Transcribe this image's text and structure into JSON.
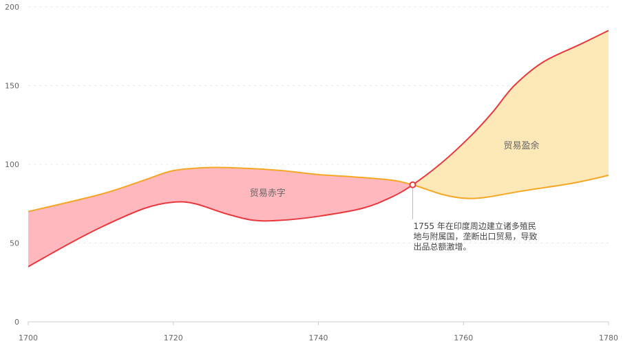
{
  "chart_data": {
    "type": "area",
    "x_range": [
      1700,
      1780
    ],
    "ylim": [
      0,
      200
    ],
    "x_ticks": [
      1700,
      1720,
      1740,
      1760,
      1780
    ],
    "y_ticks": [
      0,
      50,
      100,
      150,
      200
    ],
    "grid": true,
    "series": [
      {
        "color": "#f5a623",
        "points": [
          [
            1700,
            70
          ],
          [
            1710,
            81
          ],
          [
            1716,
            90
          ],
          [
            1720,
            96
          ],
          [
            1725,
            98
          ],
          [
            1730,
            97.5
          ],
          [
            1735,
            96
          ],
          [
            1740,
            93.5
          ],
          [
            1745,
            92
          ],
          [
            1750,
            90
          ],
          [
            1753,
            87
          ],
          [
            1757,
            81
          ],
          [
            1760,
            78.5
          ],
          [
            1763,
            79
          ],
          [
            1768,
            83
          ],
          [
            1775,
            88
          ],
          [
            1780,
            93
          ]
        ]
      },
      {
        "color": "#e8383d",
        "points": [
          [
            1700,
            35
          ],
          [
            1705,
            48
          ],
          [
            1710,
            60
          ],
          [
            1716,
            72
          ],
          [
            1720,
            76
          ],
          [
            1723,
            75
          ],
          [
            1727,
            69
          ],
          [
            1731,
            64.5
          ],
          [
            1735,
            64.5
          ],
          [
            1740,
            67
          ],
          [
            1746,
            72
          ],
          [
            1750,
            79
          ],
          [
            1753,
            87
          ],
          [
            1757,
            101
          ],
          [
            1761,
            118
          ],
          [
            1764,
            133
          ],
          [
            1767,
            150
          ],
          [
            1771,
            165
          ],
          [
            1776,
            176
          ],
          [
            1780,
            185
          ]
        ]
      }
    ],
    "regions": [
      {
        "label": "贸易赤字",
        "fill": "#ffb8bd",
        "x_from": 1700,
        "x_to": 1753,
        "label_x": 1733,
        "label_y": 80
      },
      {
        "label": "贸易盈余",
        "fill": "#fde8b8",
        "x_from": 1753,
        "x_to": 1780,
        "label_x": 1768,
        "label_y": 110
      }
    ],
    "annotation": {
      "x": 1753,
      "y": 87,
      "lines": [
        "1755 年在印度周边建立诸多殖民",
        "地与附属国，垄断出口贸易，导致",
        "出品总额激增。"
      ]
    }
  }
}
